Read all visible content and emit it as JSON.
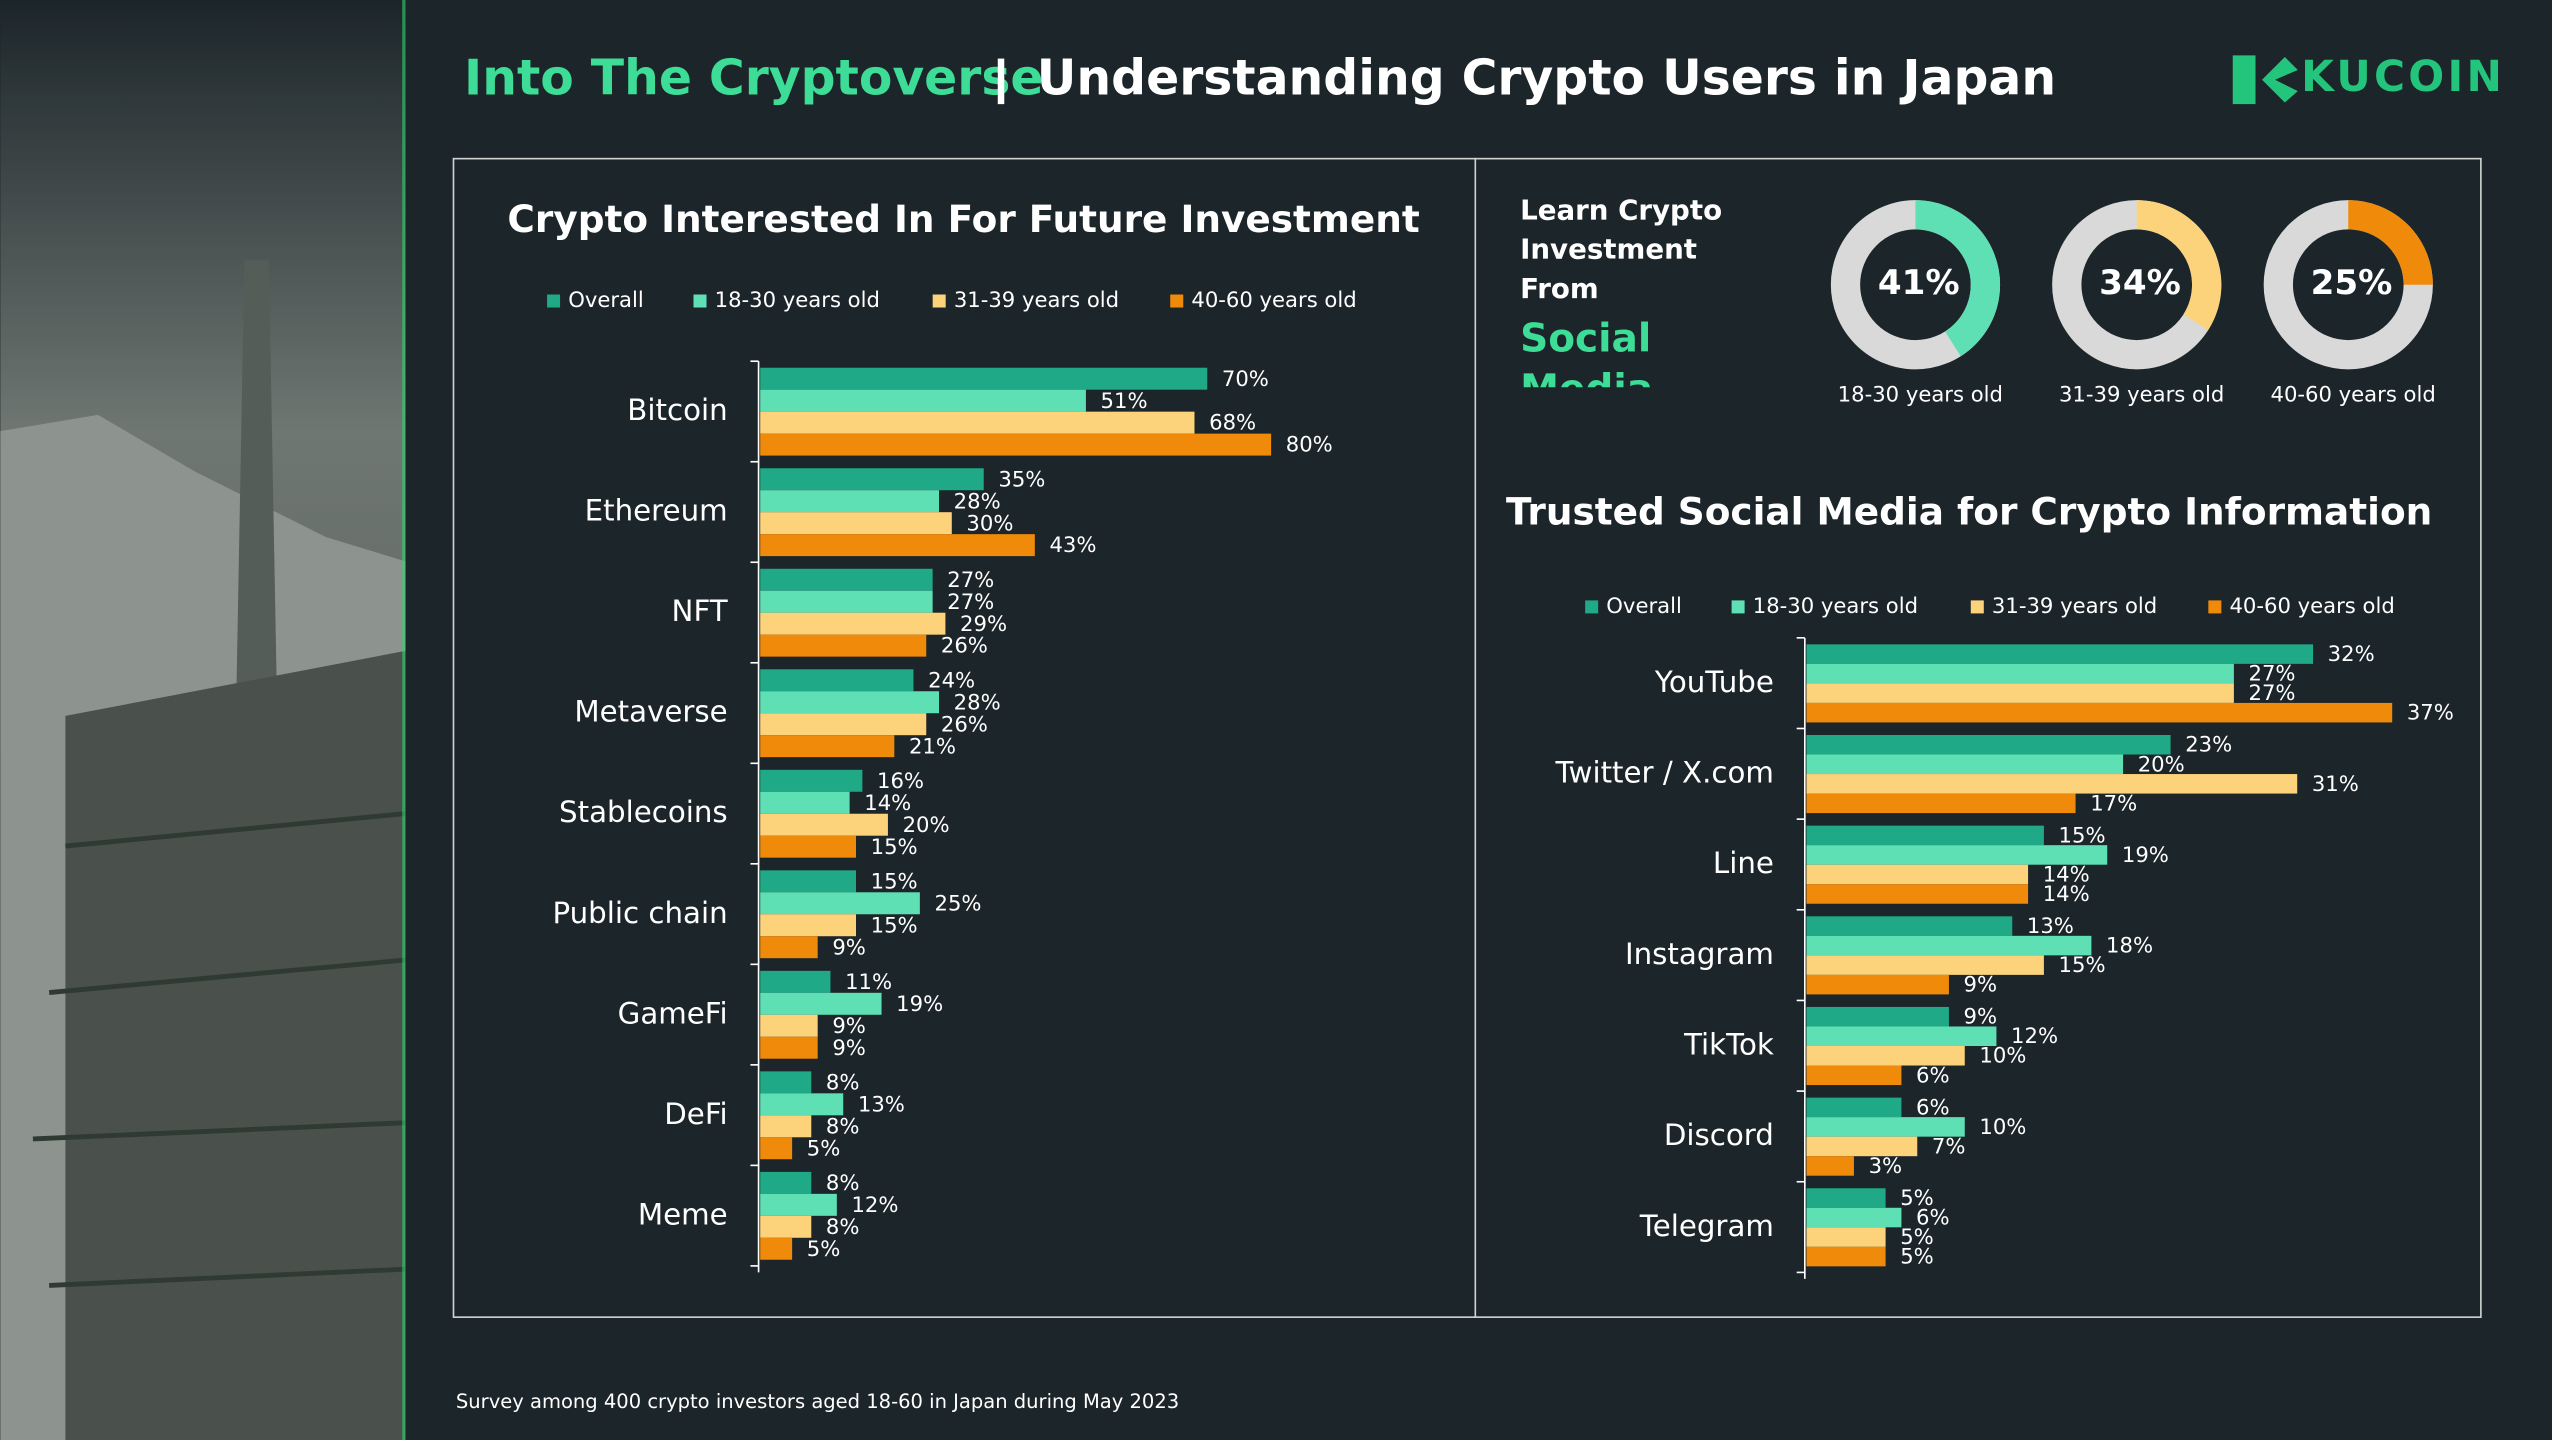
{
  "header": {
    "title": "Into The Cryptoverse",
    "subtitle": "Understanding Crypto Users in Japan",
    "logo": "KUCOIN"
  },
  "footnote": "Survey among 400 crypto investors aged 18-60 in Japan during May 2023",
  "chart_data": [
    {
      "type": "bar",
      "orientation": "horizontal",
      "title": "Crypto Interested In For Future Investment",
      "categories": [
        "Bitcoin",
        "Ethereum",
        "NFT",
        "Metaverse",
        "Stablecoins",
        "Public chain",
        "GameFi",
        "DeFi",
        "Meme"
      ],
      "series": [
        {
          "name": "Overall",
          "color": "#20a986",
          "values": [
            70,
            35,
            27,
            24,
            16,
            15,
            11,
            8,
            8
          ],
          "value_labels": [
            "70%",
            "35%",
            "27%",
            "24%",
            "16%",
            "15%",
            "11%",
            "8%",
            "8%"
          ]
        },
        {
          "name": "18-30 years old",
          "color": "#5fe0b4",
          "values": [
            51,
            28,
            27,
            28,
            14,
            25,
            19,
            13,
            12
          ],
          "value_labels": [
            "51%",
            "28%",
            "27%",
            "28%",
            "14%",
            "25%",
            "19%",
            "13%",
            "12%"
          ]
        },
        {
          "name": "31-39 years old",
          "color": "#fcd27b",
          "values": [
            68,
            30,
            29,
            26,
            20,
            15,
            9,
            8,
            8
          ],
          "value_labels": [
            "68%",
            "30%",
            "29%",
            "26%",
            "20%",
            "15%",
            "9%",
            "8%",
            "8%"
          ]
        },
        {
          "name": "40-60 years old",
          "color": "#f08a0a",
          "values": [
            80,
            43,
            26,
            21,
            15,
            9,
            9,
            5,
            5
          ],
          "value_labels": [
            "80%",
            "43%",
            "26%",
            "21%",
            "15%",
            "9%",
            "9%",
            "5%",
            "5%"
          ]
        }
      ]
    },
    {
      "type": "pie",
      "title": "Learn Crypto Investment From",
      "subtitle": "Social Media Influencers",
      "categories": [
        "18-30 years old",
        "31-39 years old",
        "40-60 years old"
      ],
      "values": [
        41,
        34,
        25
      ],
      "value_labels": [
        "41%",
        "34%",
        "25%"
      ],
      "colors": [
        "#5fe0b4",
        "#fcd27b",
        "#f08a0a"
      ],
      "track_color": "#d9d9d9"
    },
    {
      "type": "bar",
      "orientation": "horizontal",
      "title": "Trusted Social Media for Crypto Information",
      "categories": [
        "YouTube",
        "Twitter / X.com",
        "Line",
        "Instagram",
        "TikTok",
        "Discord",
        "Telegram"
      ],
      "series": [
        {
          "name": "Overall",
          "color": "#20a986",
          "values": [
            32,
            23,
            15,
            13,
            9,
            6,
            5
          ],
          "value_labels": [
            "32%",
            "23%",
            "15%",
            "13%",
            "9%",
            "6%",
            "5%"
          ]
        },
        {
          "name": "18-30 years old",
          "color": "#5fe0b4",
          "values": [
            27,
            20,
            19,
            18,
            12,
            10,
            6
          ],
          "value_labels": [
            "27%",
            "20%",
            "19%",
            "18%",
            "12%",
            "10%",
            "6%"
          ]
        },
        {
          "name": "31-39 years old",
          "color": "#fcd27b",
          "values": [
            27,
            31,
            14,
            15,
            10,
            7,
            5
          ],
          "value_labels": [
            "27%",
            "31%",
            "14%",
            "15%",
            "10%",
            "7%",
            "5%"
          ]
        },
        {
          "name": "40-60 years old",
          "color": "#f08a0a",
          "values": [
            37,
            17,
            14,
            9,
            6,
            3,
            5
          ],
          "value_labels": [
            "37%",
            "17%",
            "14%",
            "9%",
            "6%",
            "3%",
            "5%"
          ]
        }
      ]
    }
  ]
}
